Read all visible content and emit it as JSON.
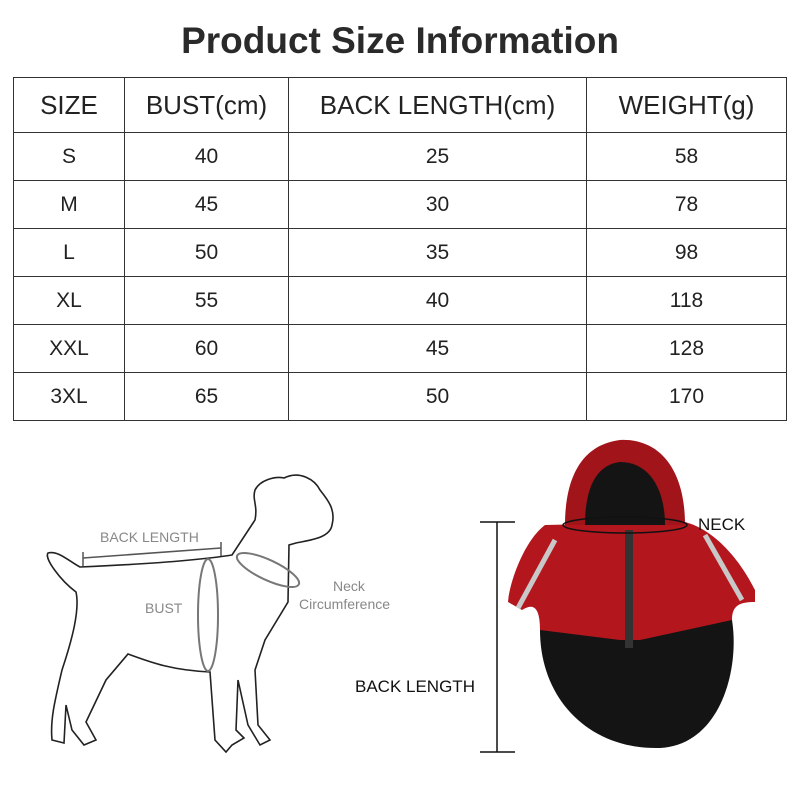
{
  "title": "Product Size Information",
  "table": {
    "headers": [
      "SIZE",
      "BUST(cm)",
      "BACK LENGTH(cm)",
      "WEIGHT(g)"
    ],
    "rows": [
      [
        "S",
        "40",
        "25",
        "58"
      ],
      [
        "M",
        "45",
        "30",
        "78"
      ],
      [
        "L",
        "50",
        "35",
        "98"
      ],
      [
        "XL",
        "55",
        "40",
        "118"
      ],
      [
        "XXL",
        "60",
        "45",
        "128"
      ],
      [
        "3XL",
        "65",
        "50",
        "170"
      ]
    ]
  },
  "dog_diagram": {
    "back_length": "BACK LENGTH",
    "bust": "BUST",
    "neck_line1": "Neck",
    "neck_line2": "Circumference"
  },
  "jacket_diagram": {
    "neck": "NECK",
    "back_length": "BACK LENGTH"
  },
  "colors": {
    "jacket_red": "#b3161c",
    "jacket_black": "#141414",
    "reflective": "#c8c8c8"
  }
}
